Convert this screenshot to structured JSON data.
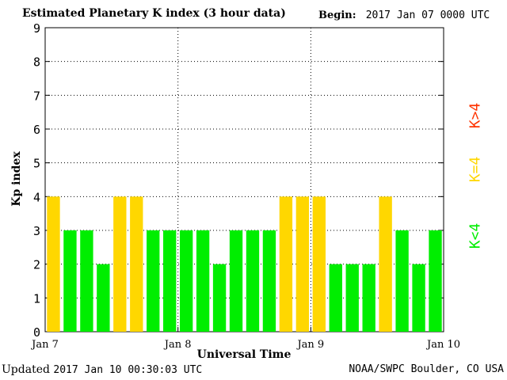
{
  "header": {
    "title": "Estimated Planetary K index (3 hour data)",
    "begin_label": "Begin:",
    "begin_value": "2017 Jan 07 0000 UTC"
  },
  "footer": {
    "updated_label": "Updated",
    "updated_value": "2017 Jan 10 00:30:03 UTC",
    "source": "NOAA/SWPC Boulder, CO USA"
  },
  "legend": {
    "below": "K<4",
    "equal": "K=4",
    "above": "K>4"
  },
  "colors": {
    "below": "#00ee00",
    "equal": "#ffd700",
    "above": "#ff3300",
    "grid": "#000000"
  },
  "chart_data": {
    "type": "bar",
    "title": "Estimated Planetary K index (3 hour data)",
    "xlabel": "Universal Time",
    "ylabel": "Kp index",
    "ylim": [
      0,
      9
    ],
    "yticks": [
      "0",
      "1",
      "2",
      "3",
      "4",
      "5",
      "6",
      "7",
      "8",
      "9"
    ],
    "xticks": [
      "Jan 7",
      "Jan 8",
      "Jan 9",
      "Jan 10"
    ],
    "grid": true,
    "bar_interval_hours": 3,
    "values": [
      4,
      3,
      3,
      2,
      4,
      4,
      3,
      3,
      3,
      3,
      2,
      3,
      3,
      3,
      4,
      4,
      4,
      2,
      2,
      2,
      4,
      3,
      2,
      3
    ]
  }
}
